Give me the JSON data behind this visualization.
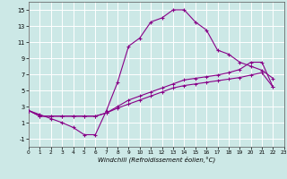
{
  "xlabel": "Windchill (Refroidissement éolien,°C)",
  "background_color": "#cce8e6",
  "grid_color": "#ffffff",
  "line_color": "#880088",
  "xlim": [
    0,
    23
  ],
  "ylim": [
    -2,
    16
  ],
  "xticks": [
    0,
    1,
    2,
    3,
    4,
    5,
    6,
    7,
    8,
    9,
    10,
    11,
    12,
    13,
    14,
    15,
    16,
    17,
    18,
    19,
    20,
    21,
    22,
    23
  ],
  "yticks": [
    -1,
    1,
    3,
    5,
    7,
    9,
    11,
    13,
    15
  ],
  "curve1_x": [
    0,
    1,
    2,
    3,
    4,
    5,
    6,
    7,
    8,
    9,
    10,
    11,
    12,
    13,
    14,
    15,
    16,
    17,
    18,
    19,
    20,
    21,
    22
  ],
  "curve1_y": [
    2.5,
    2.0,
    1.5,
    1.0,
    0.4,
    -0.5,
    -0.5,
    2.5,
    6.0,
    10.5,
    11.5,
    13.5,
    14.0,
    15.0,
    15.0,
    13.5,
    12.5,
    10.0,
    9.5,
    8.5,
    8.0,
    7.5,
    6.5
  ],
  "curve2_x": [
    0,
    1,
    2,
    3,
    4,
    5,
    6,
    7,
    8,
    9,
    10,
    11,
    12,
    13,
    14,
    15,
    16,
    17,
    18,
    19,
    20,
    21,
    22
  ],
  "curve2_y": [
    2.5,
    1.8,
    1.8,
    1.8,
    1.8,
    1.8,
    1.8,
    2.2,
    3.0,
    3.8,
    4.3,
    4.8,
    5.3,
    5.8,
    6.3,
    6.5,
    6.7,
    6.9,
    7.2,
    7.6,
    8.5,
    8.5,
    5.4
  ],
  "curve3_x": [
    0,
    1,
    2,
    3,
    4,
    5,
    6,
    7,
    8,
    9,
    10,
    11,
    12,
    13,
    14,
    15,
    16,
    17,
    18,
    19,
    20,
    21,
    22
  ],
  "curve3_y": [
    2.5,
    1.8,
    1.8,
    1.8,
    1.8,
    1.8,
    1.8,
    2.2,
    2.8,
    3.3,
    3.8,
    4.3,
    4.8,
    5.3,
    5.6,
    5.8,
    6.0,
    6.2,
    6.4,
    6.6,
    6.9,
    7.2,
    5.4
  ]
}
